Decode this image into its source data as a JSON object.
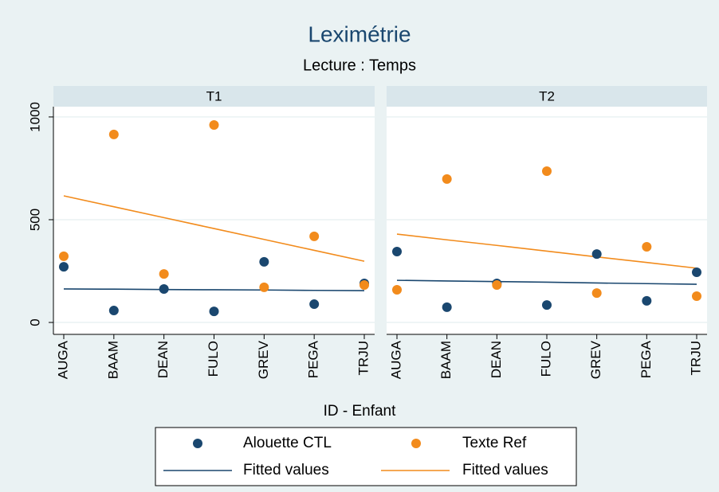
{
  "chart_data": {
    "type": "scatter",
    "title": "Leximétrie",
    "subtitle": "Lecture : Temps",
    "xlabel": "ID - Enfant",
    "panels": [
      "T1",
      "T2"
    ],
    "categories": [
      "AUGA",
      "BAAM",
      "DEAN",
      "FULO",
      "GREV",
      "PEGA",
      "TRJU"
    ],
    "ylim": [
      -58,
      1050
    ],
    "yticks": [
      0,
      500,
      1000
    ],
    "grid": true,
    "series": [
      {
        "name": "Alouette CTL",
        "color": "#1a476f",
        "kind": "scatter",
        "values": [
          [
            271,
            58,
            163,
            54,
            295,
            89,
            190
          ],
          [
            345,
            74,
            190,
            85,
            333,
            105,
            244
          ]
        ]
      },
      {
        "name": "Texte Ref",
        "color": "#f28b1c",
        "kind": "scatter",
        "values": [
          [
            322,
            915,
            236,
            961,
            171,
            419,
            182
          ],
          [
            159,
            698,
            182,
            736,
            143,
            368,
            128
          ]
        ]
      },
      {
        "name": "Fitted values",
        "color": "#1a476f",
        "kind": "line",
        "values": [
          [
            163,
            162,
            160,
            159,
            158,
            156,
            155
          ],
          [
            205,
            202,
            199,
            196,
            192,
            189,
            186
          ]
        ]
      },
      {
        "name": "Fitted values",
        "color": "#f28b1c",
        "kind": "line",
        "values": [
          [
            616,
            563,
            510,
            457,
            404,
            351,
            298
          ],
          [
            430,
            402,
            375,
            347,
            319,
            292,
            264
          ]
        ]
      }
    ]
  }
}
